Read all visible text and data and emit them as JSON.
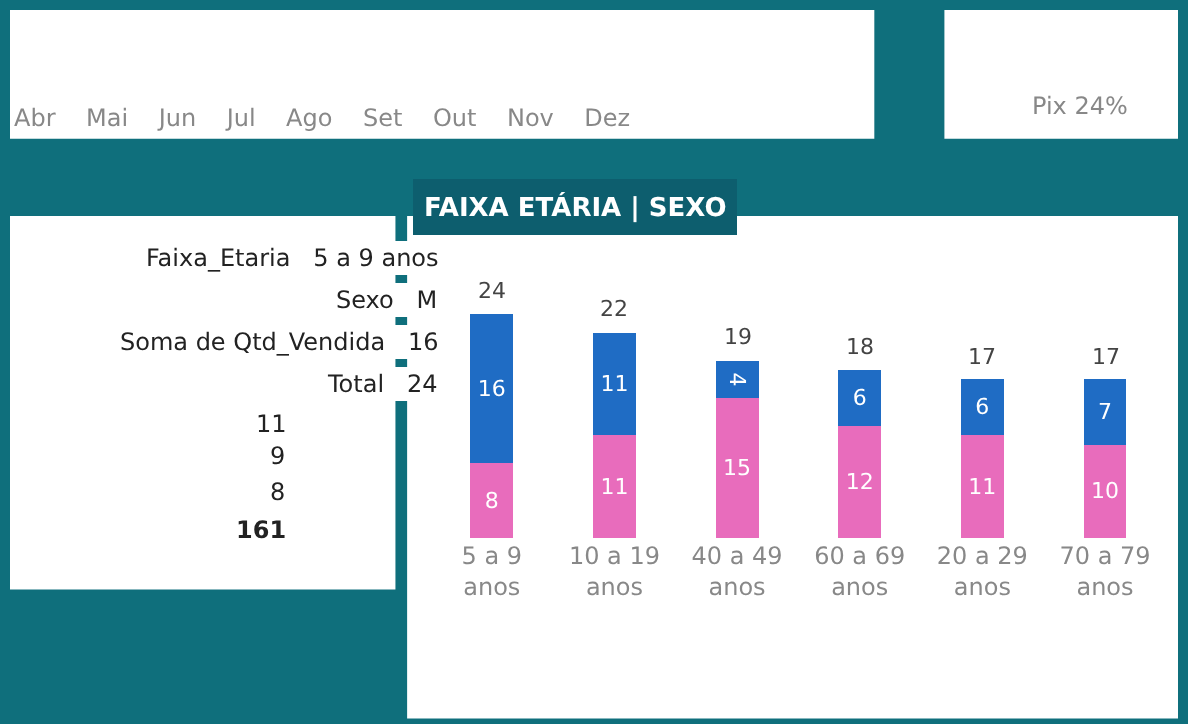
{
  "chart_data": {
    "type": "bar",
    "stacked": true,
    "title": "FAIXA ETÁRIA | SEXO",
    "categories": [
      "5 a 9 anos",
      "10 a 19 anos",
      "40 a 49 anos",
      "60 a 69 anos",
      "20 a 29 anos",
      "70 a 79 anos"
    ],
    "series": [
      {
        "color": "#e86cbc",
        "values": [
          8,
          11,
          15,
          12,
          11,
          10
        ]
      },
      {
        "color": "#1f6cc4",
        "values": [
          16,
          11,
          4,
          6,
          6,
          7
        ]
      }
    ],
    "data_labels": true,
    "totals": [
      "24",
      "22",
      "19",
      "18",
      "17",
      "17"
    ],
    "annotations": [
      "Faixa_Etaria   5 a 9 anos",
      "Sexo   M",
      "Soma de Qtd_Vendida   16",
      "Total   24",
      "Abr    Mai    Jun    Jul    Ago    Set    Out    Nov    Dez",
      "Pix 24%",
      "11",
      "9",
      "8",
      "161"
    ],
    "tick_labels": "x"
  }
}
